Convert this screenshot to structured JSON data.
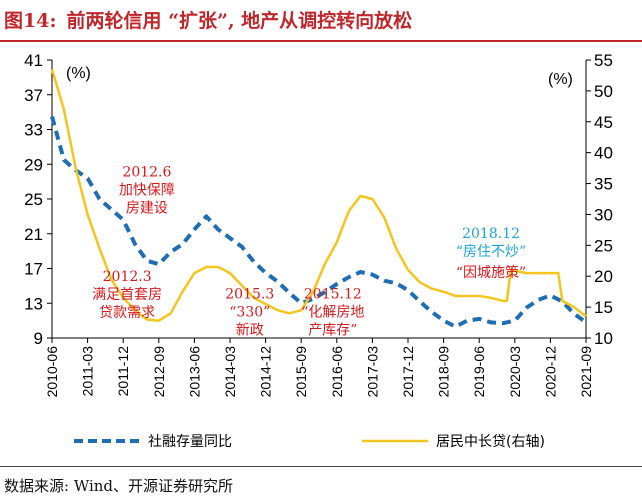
{
  "figure": {
    "number": "图14:",
    "title": "前两轮信用 “扩张”, 地产从调控转向放松"
  },
  "source": "数据来源: Wind、开源证券研究所",
  "colors": {
    "title": "#c0272d",
    "series_blue": "#1f6db3",
    "series_yellow": "#f3c51d",
    "ann_red": "#d7191c",
    "ann_blue": "#1aa3d9"
  },
  "chart_data": {
    "type": "line",
    "left_axis": {
      "unit": "(%)",
      "ylim": [
        9,
        41
      ],
      "ticks": [
        9,
        13,
        17,
        21,
        25,
        29,
        33,
        37,
        41
      ]
    },
    "right_axis": {
      "unit": "(%)",
      "ylim": [
        10,
        55
      ],
      "ticks": [
        10,
        15,
        20,
        25,
        30,
        35,
        40,
        45,
        50,
        55
      ]
    },
    "x_ticks": [
      "2010-06",
      "2011-03",
      "2011-12",
      "2012-09",
      "2013-06",
      "2014-03",
      "2014-12",
      "2015-09",
      "2016-06",
      "2017-03",
      "2017-12",
      "2018-09",
      "2019-06",
      "2020-03",
      "2020-12",
      "2021-09"
    ],
    "x_range": [
      "2010-06",
      "2021-09"
    ],
    "grid": false,
    "legend_position": "bottom",
    "series": [
      {
        "name": "社融存量同比",
        "axis": "left",
        "style": "dashed",
        "points": [
          [
            "2010-06",
            34.5
          ],
          [
            "2010-09",
            29.5
          ],
          [
            "2010-12",
            28.3
          ],
          [
            "2011-03",
            27.4
          ],
          [
            "2011-06",
            25.0
          ],
          [
            "2011-09",
            23.8
          ],
          [
            "2011-12",
            22.6
          ],
          [
            "2012-03",
            19.8
          ],
          [
            "2012-06",
            17.9
          ],
          [
            "2012-09",
            17.5
          ],
          [
            "2012-12",
            18.9
          ],
          [
            "2013-03",
            19.8
          ],
          [
            "2013-06",
            21.5
          ],
          [
            "2013-09",
            23.0
          ],
          [
            "2013-12",
            21.5
          ],
          [
            "2014-03",
            20.5
          ],
          [
            "2014-06",
            19.5
          ],
          [
            "2014-09",
            17.8
          ],
          [
            "2014-12",
            16.5
          ],
          [
            "2015-03",
            15.5
          ],
          [
            "2015-06",
            14.2
          ],
          [
            "2015-09",
            13.0
          ],
          [
            "2015-12",
            13.5
          ],
          [
            "2016-03",
            14.3
          ],
          [
            "2016-06",
            15.2
          ],
          [
            "2016-09",
            16.0
          ],
          [
            "2016-12",
            16.6
          ],
          [
            "2017-03",
            16.3
          ],
          [
            "2017-06",
            15.6
          ],
          [
            "2017-09",
            15.3
          ],
          [
            "2017-12",
            14.5
          ],
          [
            "2018-03",
            13.2
          ],
          [
            "2018-06",
            12.0
          ],
          [
            "2018-09",
            11.0
          ],
          [
            "2018-12",
            10.3
          ],
          [
            "2019-03",
            11.0
          ],
          [
            "2019-06",
            11.2
          ],
          [
            "2019-09",
            10.8
          ],
          [
            "2019-12",
            10.7
          ],
          [
            "2020-03",
            11.0
          ],
          [
            "2020-06",
            12.5
          ],
          [
            "2020-09",
            13.4
          ],
          [
            "2020-12",
            13.9
          ],
          [
            "2021-03",
            13.2
          ],
          [
            "2021-06",
            11.8
          ],
          [
            "2021-09",
            10.8
          ]
        ]
      },
      {
        "name": "居民中长贷(右轴)",
        "axis": "right",
        "style": "solid",
        "points": [
          [
            "2010-06",
            53.5
          ],
          [
            "2010-09",
            47.0
          ],
          [
            "2010-12",
            37.5
          ],
          [
            "2011-03",
            30.0
          ],
          [
            "2011-06",
            24.5
          ],
          [
            "2011-09",
            19.5
          ],
          [
            "2011-12",
            16.5
          ],
          [
            "2012-03",
            14.5
          ],
          [
            "2012-06",
            13.0
          ],
          [
            "2012-09",
            12.8
          ],
          [
            "2012-12",
            14.0
          ],
          [
            "2013-03",
            17.5
          ],
          [
            "2013-06",
            20.5
          ],
          [
            "2013-09",
            21.5
          ],
          [
            "2013-12",
            21.5
          ],
          [
            "2014-03",
            20.5
          ],
          [
            "2014-06",
            18.5
          ],
          [
            "2014-09",
            16.5
          ],
          [
            "2014-12",
            15.5
          ],
          [
            "2015-03",
            14.5
          ],
          [
            "2015-06",
            14.0
          ],
          [
            "2015-09",
            14.5
          ],
          [
            "2015-12",
            17.5
          ],
          [
            "2016-03",
            22.0
          ],
          [
            "2016-06",
            25.5
          ],
          [
            "2016-09",
            30.5
          ],
          [
            "2016-12",
            33.0
          ],
          [
            "2017-03",
            32.5
          ],
          [
            "2017-06",
            29.5
          ],
          [
            "2017-09",
            24.5
          ],
          [
            "2017-12",
            21.0
          ],
          [
            "2018-03",
            19.0
          ],
          [
            "2018-06",
            18.0
          ],
          [
            "2018-09",
            17.5
          ],
          [
            "2018-12",
            16.8
          ],
          [
            "2019-03",
            16.8
          ],
          [
            "2019-06",
            16.8
          ],
          [
            "2019-09",
            16.5
          ],
          [
            "2019-12",
            16.0
          ],
          [
            "2020-01",
            16.0
          ],
          [
            "2020-02",
            21.0
          ],
          [
            "2020-06",
            20.5
          ],
          [
            "2020-12",
            20.5
          ],
          [
            "2021-02",
            20.5
          ],
          [
            "2021-03",
            16.0
          ],
          [
            "2021-06",
            15.0
          ],
          [
            "2021-09",
            13.5
          ]
        ]
      }
    ],
    "annotations": [
      {
        "lines": [
          "2012.6",
          "加快保障",
          "房建设"
        ],
        "color": "red",
        "anchor_x": "2012-06",
        "anchor_y_left": 25.5
      },
      {
        "lines": [
          "2012.3",
          "满足首套房",
          "贷款需求"
        ],
        "color": "red",
        "anchor_x": "2012-01",
        "anchor_y_left": 13.5
      },
      {
        "lines": [
          "2015.3",
          "“330”",
          "新政"
        ],
        "color": "red",
        "anchor_x": "2014-08",
        "anchor_y_left": 11.5
      },
      {
        "lines": [
          "2015.12",
          "“化解房地",
          "产库存”"
        ],
        "color": "red",
        "anchor_x": "2016-05",
        "anchor_y_left": 11.5
      },
      {
        "lines": [
          "2018.12",
          "“房住不炒”"
        ],
        "color": "blue",
        "anchor_x": "2019-09",
        "anchor_y_left": 19.5
      },
      {
        "lines": [
          "“因城施策”"
        ],
        "color": "red",
        "anchor_x": "2019-09",
        "anchor_y_left": 16.0
      }
    ]
  }
}
